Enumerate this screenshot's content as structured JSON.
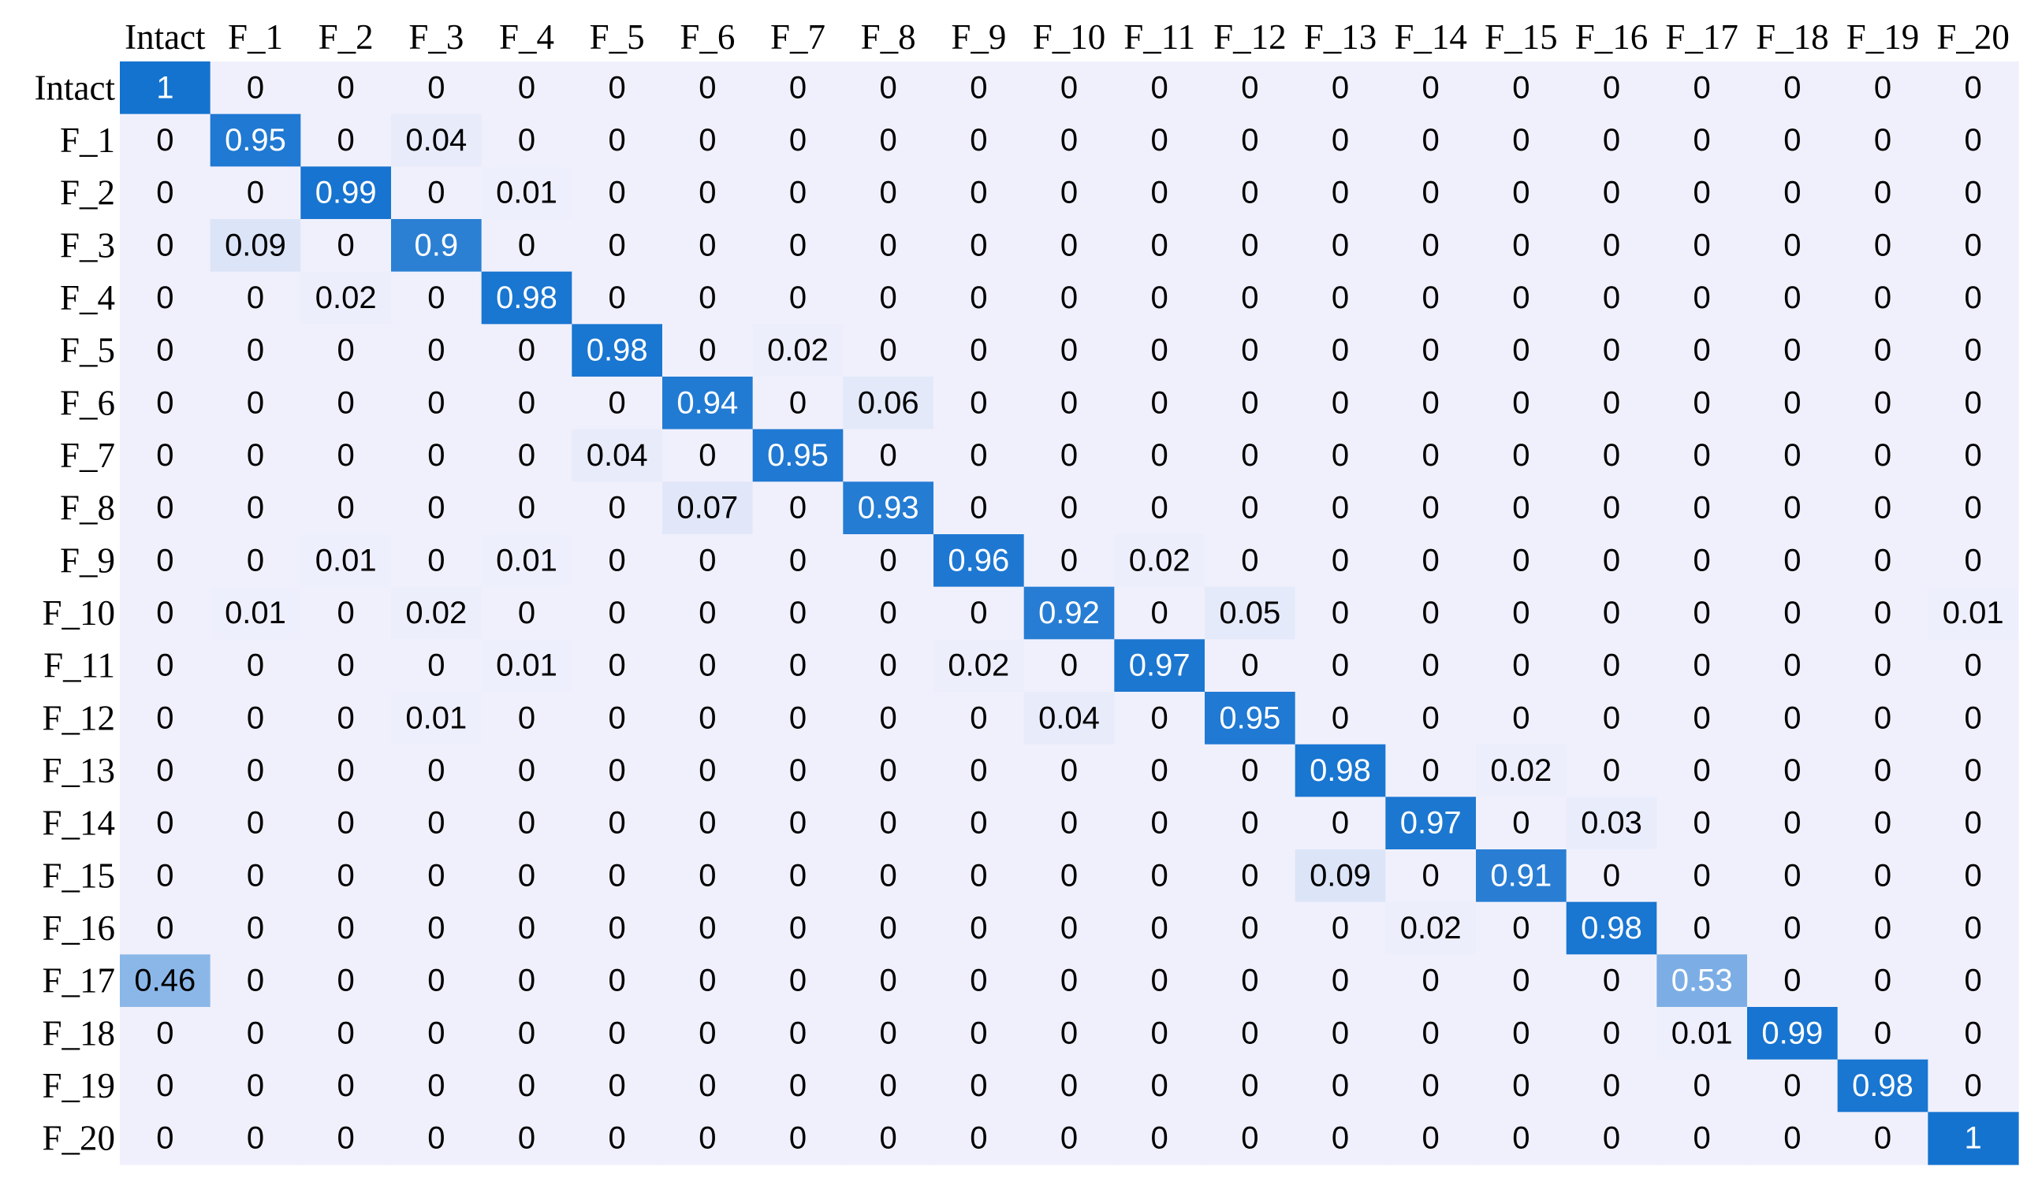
{
  "chart_data": {
    "type": "heatmap",
    "title": "",
    "xlabel": "",
    "ylabel": "",
    "labels": [
      "Intact",
      "F_1",
      "F_2",
      "F_3",
      "F_4",
      "F_5",
      "F_6",
      "F_7",
      "F_8",
      "F_9",
      "F_10",
      "F_11",
      "F_12",
      "F_13",
      "F_14",
      "F_15",
      "F_16",
      "F_17",
      "F_18",
      "F_19",
      "F_20"
    ],
    "x_tick_position": "top",
    "value_range": [
      0,
      1
    ],
    "colors": {
      "low": "#F0F0FC",
      "high": "#1573D0",
      "text_dark": "#000000",
      "text_light": "#FFFFFF"
    },
    "matrix": [
      [
        1,
        0,
        0,
        0,
        0,
        0,
        0,
        0,
        0,
        0,
        0,
        0,
        0,
        0,
        0,
        0,
        0,
        0,
        0,
        0,
        0
      ],
      [
        0,
        0.95,
        0,
        0.04,
        0,
        0,
        0,
        0,
        0,
        0,
        0,
        0,
        0,
        0,
        0,
        0,
        0,
        0,
        0,
        0,
        0
      ],
      [
        0,
        0,
        0.99,
        0,
        0.01,
        0,
        0,
        0,
        0,
        0,
        0,
        0,
        0,
        0,
        0,
        0,
        0,
        0,
        0,
        0,
        0
      ],
      [
        0,
        0.09,
        0,
        0.9,
        0,
        0,
        0,
        0,
        0,
        0,
        0,
        0,
        0,
        0,
        0,
        0,
        0,
        0,
        0,
        0,
        0
      ],
      [
        0,
        0,
        0.02,
        0,
        0.98,
        0,
        0,
        0,
        0,
        0,
        0,
        0,
        0,
        0,
        0,
        0,
        0,
        0,
        0,
        0,
        0
      ],
      [
        0,
        0,
        0,
        0,
        0,
        0.98,
        0,
        0.02,
        0,
        0,
        0,
        0,
        0,
        0,
        0,
        0,
        0,
        0,
        0,
        0,
        0
      ],
      [
        0,
        0,
        0,
        0,
        0,
        0,
        0.94,
        0,
        0.06,
        0,
        0,
        0,
        0,
        0,
        0,
        0,
        0,
        0,
        0,
        0,
        0
      ],
      [
        0,
        0,
        0,
        0,
        0,
        0.04,
        0,
        0.95,
        0,
        0,
        0,
        0,
        0,
        0,
        0,
        0,
        0,
        0,
        0,
        0,
        0
      ],
      [
        0,
        0,
        0,
        0,
        0,
        0,
        0.07,
        0,
        0.93,
        0,
        0,
        0,
        0,
        0,
        0,
        0,
        0,
        0,
        0,
        0,
        0
      ],
      [
        0,
        0,
        0.01,
        0,
        0.01,
        0,
        0,
        0,
        0,
        0.96,
        0,
        0.02,
        0,
        0,
        0,
        0,
        0,
        0,
        0,
        0,
        0
      ],
      [
        0,
        0.01,
        0,
        0.02,
        0,
        0,
        0,
        0,
        0,
        0,
        0.92,
        0,
        0.05,
        0,
        0,
        0,
        0,
        0,
        0,
        0,
        0.01
      ],
      [
        0,
        0,
        0,
        0,
        0.01,
        0,
        0,
        0,
        0,
        0.02,
        0,
        0.97,
        0,
        0,
        0,
        0,
        0,
        0,
        0,
        0,
        0
      ],
      [
        0,
        0,
        0,
        0.01,
        0,
        0,
        0,
        0,
        0,
        0,
        0.04,
        0,
        0.95,
        0,
        0,
        0,
        0,
        0,
        0,
        0,
        0
      ],
      [
        0,
        0,
        0,
        0,
        0,
        0,
        0,
        0,
        0,
        0,
        0,
        0,
        0,
        0.98,
        0,
        0.02,
        0,
        0,
        0,
        0,
        0
      ],
      [
        0,
        0,
        0,
        0,
        0,
        0,
        0,
        0,
        0,
        0,
        0,
        0,
        0,
        0,
        0.97,
        0,
        0.03,
        0,
        0,
        0,
        0
      ],
      [
        0,
        0,
        0,
        0,
        0,
        0,
        0,
        0,
        0,
        0,
        0,
        0,
        0,
        0.09,
        0,
        0.91,
        0,
        0,
        0,
        0,
        0
      ],
      [
        0,
        0,
        0,
        0,
        0,
        0,
        0,
        0,
        0,
        0,
        0,
        0,
        0,
        0,
        0.02,
        0,
        0.98,
        0,
        0,
        0,
        0
      ],
      [
        0.46,
        0,
        0,
        0,
        0,
        0,
        0,
        0,
        0,
        0,
        0,
        0,
        0,
        0,
        0,
        0,
        0,
        0.53,
        0,
        0,
        0
      ],
      [
        0,
        0,
        0,
        0,
        0,
        0,
        0,
        0,
        0,
        0,
        0,
        0,
        0,
        0,
        0,
        0,
        0,
        0.01,
        0.99,
        0,
        0
      ],
      [
        0,
        0,
        0,
        0,
        0,
        0,
        0,
        0,
        0,
        0,
        0,
        0,
        0,
        0,
        0,
        0,
        0,
        0,
        0,
        0.98,
        0
      ],
      [
        0,
        0,
        0,
        0,
        0,
        0,
        0,
        0,
        0,
        0,
        0,
        0,
        0,
        0,
        0,
        0,
        0,
        0,
        0,
        0,
        1
      ]
    ]
  }
}
